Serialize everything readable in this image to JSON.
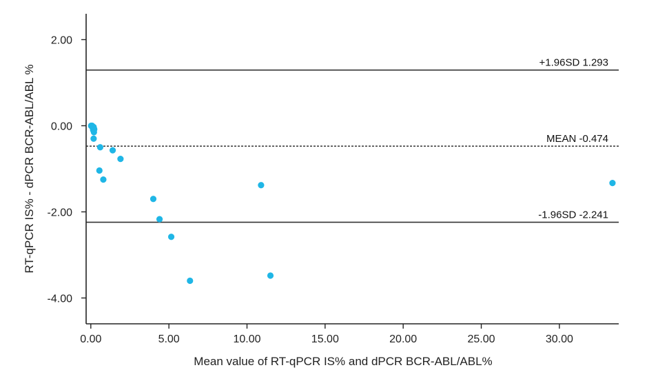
{
  "chart_data": {
    "type": "scatter",
    "title": "",
    "xlabel": "Mean value of RT-qPCR IS% and dPCR BCR-ABL/ABL%",
    "ylabel": "RT-qPCR IS% - dPCR BCR-ABL/ABL %",
    "xlim": [
      -0.3,
      33.8
    ],
    "ylim": [
      -4.6,
      2.6
    ],
    "x_ticks": [
      0,
      5,
      10,
      15,
      20,
      25,
      30
    ],
    "x_tick_labels": [
      "0.00",
      "5.00",
      "10.00",
      "15.00",
      "20.00",
      "25.00",
      "30.00"
    ],
    "y_ticks": [
      2,
      0,
      -2,
      -4
    ],
    "y_tick_labels": [
      "2.00",
      "0.00",
      "-2.00",
      "-4.00"
    ],
    "grid": false,
    "point_color": "#1fb6e6",
    "points": [
      {
        "x": 0.02,
        "y": 0.0
      },
      {
        "x": 0.05,
        "y": -0.01
      },
      {
        "x": 0.08,
        "y": 0.0
      },
      {
        "x": 0.1,
        "y": -0.02
      },
      {
        "x": 0.13,
        "y": -0.05
      },
      {
        "x": 0.15,
        "y": -0.1
      },
      {
        "x": 0.18,
        "y": -0.03
      },
      {
        "x": 0.2,
        "y": -0.15
      },
      {
        "x": 0.22,
        "y": -0.08
      },
      {
        "x": 0.18,
        "y": -0.3
      },
      {
        "x": 0.6,
        "y": -0.5
      },
      {
        "x": 0.55,
        "y": -1.04
      },
      {
        "x": 0.8,
        "y": -1.25
      },
      {
        "x": 1.4,
        "y": -0.57
      },
      {
        "x": 1.9,
        "y": -0.77
      },
      {
        "x": 4.0,
        "y": -1.7
      },
      {
        "x": 4.4,
        "y": -2.17
      },
      {
        "x": 5.15,
        "y": -2.58
      },
      {
        "x": 6.35,
        "y": -3.6
      },
      {
        "x": 10.9,
        "y": -1.38
      },
      {
        "x": 11.5,
        "y": -3.48
      },
      {
        "x": 33.4,
        "y": -1.33
      }
    ],
    "reference_lines": [
      {
        "label": "+1.96SD 1.293",
        "y": 1.293,
        "style": "solid"
      },
      {
        "label": "MEAN -0.474",
        "y": -0.474,
        "style": "dashed"
      },
      {
        "label": "-1.96SD -2.241",
        "y": -2.241,
        "style": "solid"
      }
    ]
  }
}
